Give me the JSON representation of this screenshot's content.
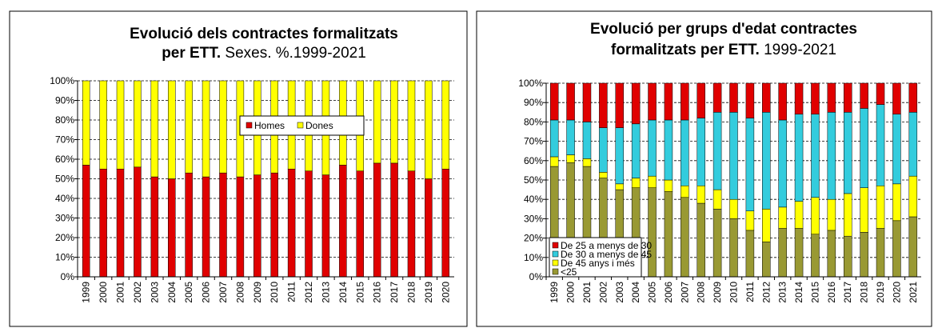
{
  "chart_data": [
    {
      "type": "stacked-bar",
      "title": [
        "Evolució dels contractes formalitzats",
        "per ETT."
      ],
      "subtitle": "Sexes. %.1999-2021",
      "categories": [
        "1999",
        "2000",
        "2001",
        "2002",
        "2003",
        "2004",
        "2005",
        "2006",
        "2007",
        "2008",
        "2009",
        "2010",
        "2011",
        "2012",
        "2013",
        "2014",
        "2015",
        "2016",
        "2017",
        "2018",
        "2019",
        "2020"
      ],
      "series": [
        {
          "name": "Homes",
          "color": "#e00000",
          "values": [
            57,
            55,
            55,
            56,
            51,
            50,
            53,
            51,
            53,
            51,
            52,
            53,
            55,
            54,
            52,
            57,
            54,
            58,
            58,
            54,
            50,
            55
          ]
        },
        {
          "name": "Dones",
          "color": "#ffff00",
          "values": [
            43,
            45,
            45,
            44,
            49,
            50,
            47,
            49,
            47,
            49,
            48,
            47,
            45,
            46,
            48,
            43,
            46,
            42,
            42,
            46,
            50,
            45
          ]
        }
      ],
      "ylim": [
        0,
        100
      ],
      "yticks": [
        {
          "value": 0,
          "label": "0%"
        },
        {
          "value": 10,
          "label": "10%"
        },
        {
          "value": 20,
          "label": "20%"
        },
        {
          "value": 30,
          "label": "30%"
        },
        {
          "value": 40,
          "label": "40%"
        },
        {
          "value": 50,
          "label": "50%"
        },
        {
          "value": 60,
          "label": "60%"
        },
        {
          "value": 70,
          "label": "70%"
        },
        {
          "value": 80,
          "label": "80%"
        },
        {
          "value": 90,
          "label": "90%"
        },
        {
          "value": 100,
          "label": "100%"
        }
      ],
      "grid": true,
      "legend": "top-right"
    },
    {
      "type": "stacked-bar",
      "title": [
        "Evolució per grups d'edat contractes",
        "formalitzats per ETT."
      ],
      "subtitle": "1999-2021",
      "categories": [
        "1999",
        "2000",
        "2001",
        "2002",
        "2003",
        "2004",
        "2005",
        "2006",
        "2007",
        "2008",
        "2009",
        "2010",
        "2011",
        "2012",
        "2013",
        "2014",
        "2015",
        "2016",
        "2017",
        "2018",
        "2019",
        "2020",
        "2021"
      ],
      "series": [
        {
          "name": "<25",
          "color": "#999933",
          "values": [
            57,
            59,
            57,
            51,
            45,
            46,
            46,
            44,
            41,
            38,
            35,
            30,
            24,
            18,
            25,
            25,
            22,
            24,
            21,
            23,
            25,
            29,
            31
          ]
        },
        {
          "name": "De 45 anys i més",
          "color": "#ffff00",
          "values": [
            5,
            4,
            4,
            3,
            3,
            5,
            6,
            6,
            6,
            9,
            10,
            10,
            10,
            17,
            11,
            14,
            19,
            16,
            22,
            23,
            22,
            19,
            21
          ]
        },
        {
          "name": "De 30 a menys de 45",
          "color": "#33ccdd",
          "values": [
            19,
            18,
            19,
            23,
            29,
            28,
            29,
            31,
            34,
            35,
            40,
            45,
            48,
            50,
            45,
            45,
            43,
            45,
            42,
            41,
            42,
            36,
            33
          ]
        },
        {
          "name": "De 25 a menys de 30",
          "color": "#e00000",
          "values": [
            19,
            19,
            20,
            23,
            23,
            21,
            19,
            19,
            19,
            18,
            15,
            15,
            18,
            15,
            19,
            16,
            16,
            15,
            15,
            13,
            11,
            16,
            15
          ]
        }
      ],
      "ylim": [
        0,
        100
      ],
      "yticks": [
        {
          "value": 0,
          "label": "0%"
        },
        {
          "value": 10,
          "label": "10%"
        },
        {
          "value": 20,
          "label": "20%"
        },
        {
          "value": 30,
          "label": "30%"
        },
        {
          "value": 40,
          "label": "40%"
        },
        {
          "value": 50,
          "label": "50%"
        },
        {
          "value": 60,
          "label": "60%"
        },
        {
          "value": 70,
          "label": "70%"
        },
        {
          "value": 80,
          "label": "80%"
        },
        {
          "value": 90,
          "label": "90%"
        },
        {
          "value": 100,
          "label": "100%"
        }
      ],
      "grid": true,
      "legend": "bottom-left"
    }
  ]
}
